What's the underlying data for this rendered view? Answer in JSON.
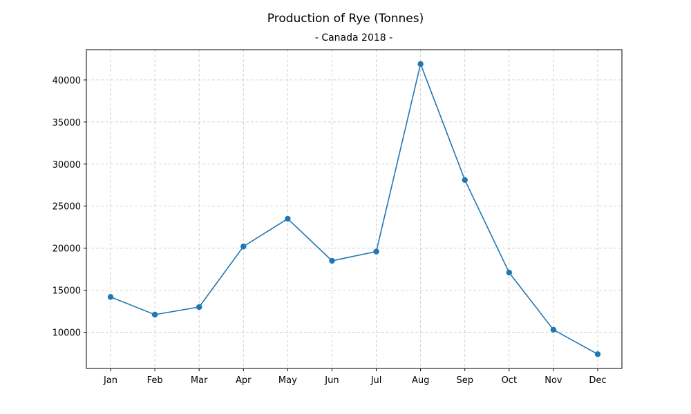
{
  "chart_data": {
    "type": "line",
    "title": "Production of Rye (Tonnes)",
    "subtitle": "- Canada 2018 -",
    "xlabel": "",
    "ylabel": "",
    "categories": [
      "Jan",
      "Feb",
      "Mar",
      "Apr",
      "May",
      "Jun",
      "Jul",
      "Aug",
      "Sep",
      "Oct",
      "Nov",
      "Dec"
    ],
    "series": [
      {
        "values": [
          14200,
          12100,
          13000,
          20200,
          23500,
          18500,
          19600,
          41900,
          28100,
          17100,
          10300,
          7400
        ],
        "color": "#1f77b4",
        "marker": "circle"
      }
    ],
    "ylim": [
      5700,
      43600
    ],
    "yticks": [
      10000,
      15000,
      20000,
      25000,
      30000,
      35000,
      40000
    ],
    "grid": true,
    "legend": "none"
  }
}
